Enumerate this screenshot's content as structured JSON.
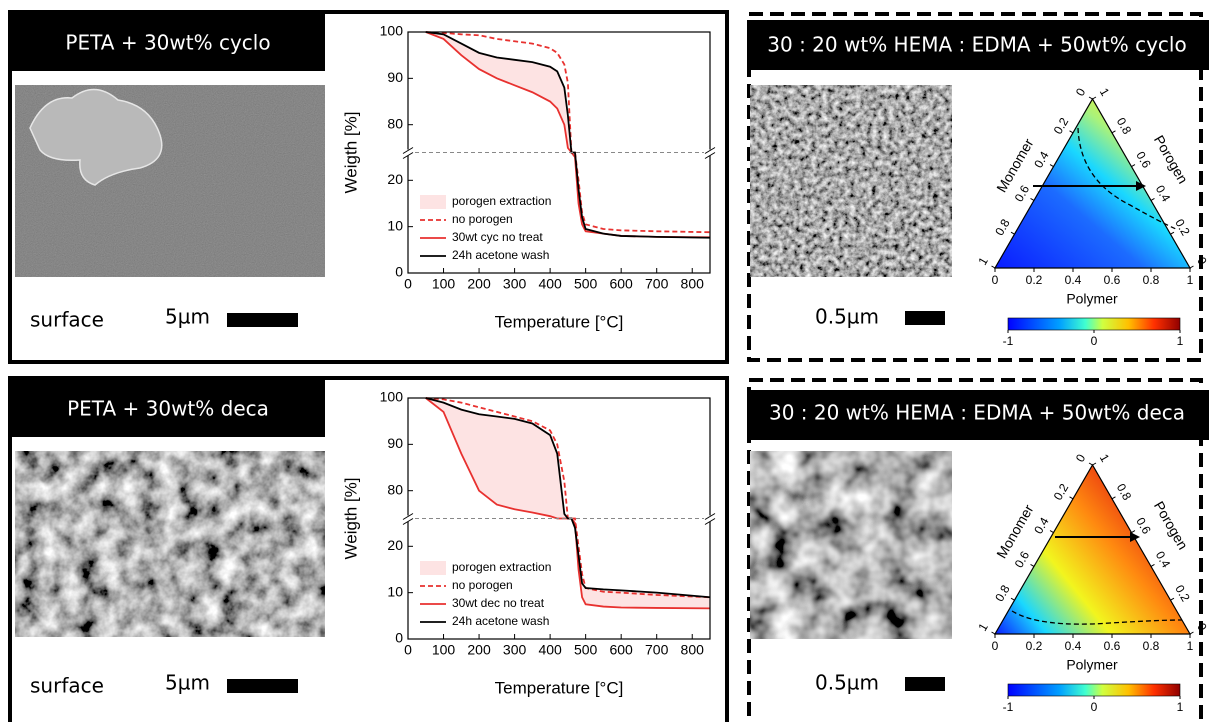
{
  "panels": [
    {
      "title": "PETA + 30wt% cyclo",
      "image_caption": "surface",
      "scale_label": "5µm"
    },
    {
      "title": "30 : 20 wt% HEMA : EDMA + 50wt% cyclo",
      "scale_label": "0.5µm"
    },
    {
      "title": "PETA + 30wt% deca",
      "image_caption": "surface",
      "scale_label": "5µm"
    },
    {
      "title": "30 : 20 wt% HEMA : EDMA + 50wt% deca",
      "scale_label": "0.5µm"
    }
  ],
  "chart_data": [
    {
      "type": "line",
      "x_label": "Temperature [°C]",
      "y_label": "Weigth [%]",
      "x": [
        50,
        100,
        150,
        200,
        250,
        300,
        350,
        400,
        420,
        440,
        450,
        460,
        470,
        480,
        490,
        500,
        550,
        600,
        700,
        850
      ],
      "xlim": [
        0,
        850
      ],
      "xticks": [
        0,
        100,
        200,
        300,
        400,
        500,
        600,
        700,
        800
      ],
      "ylim": [
        0,
        100
      ],
      "y_break": [
        26,
        74
      ],
      "yticks": [
        0,
        10,
        20,
        80,
        90,
        100
      ],
      "series": [
        {
          "name": "porogen extraction",
          "color": "#fde3e3",
          "band": [
            2,
            3
          ]
        },
        {
          "name": "no porogen",
          "color": "#e8312f",
          "dash": true,
          "values": [
            100,
            99.8,
            99.5,
            99.3,
            98.5,
            98,
            97.5,
            96.5,
            95.5,
            93,
            89,
            50,
            30,
            20,
            13,
            10.5,
            9.5,
            9.2,
            9,
            8.8
          ]
        },
        {
          "name": "30wt cyc no treat",
          "color": "#e8312f",
          "values": [
            100,
            98.5,
            95,
            92,
            90,
            88.5,
            87,
            85,
            83.5,
            80,
            75,
            40,
            25,
            15,
            10.5,
            9,
            8.5,
            8,
            7.8,
            7.7
          ]
        },
        {
          "name": "24h acetone wash",
          "color": "#000000",
          "values": [
            100,
            99.5,
            97.5,
            95.5,
            94.5,
            94,
            93.5,
            92.5,
            91.5,
            88,
            82,
            45,
            28,
            18,
            12,
            9.5,
            8.5,
            8,
            7.8,
            7.6
          ]
        }
      ]
    },
    {
      "type": "ternary",
      "bottom_label": "Polymer",
      "left_label": "Monomer",
      "right_label": "Porogen",
      "ticks": [
        0,
        0.2,
        0.4,
        0.6,
        0.8,
        1
      ],
      "colorbar_lim": [
        -1,
        1
      ],
      "colorbar_ticks": [
        -1,
        0,
        1
      ]
    },
    {
      "type": "line",
      "x_label": "Temperature [°C]",
      "y_label": "Weigth [%]",
      "x": [
        50,
        100,
        150,
        200,
        250,
        300,
        350,
        400,
        420,
        440,
        450,
        460,
        470,
        480,
        490,
        500,
        550,
        600,
        700,
        850
      ],
      "xlim": [
        0,
        850
      ],
      "xticks": [
        0,
        100,
        200,
        300,
        400,
        500,
        600,
        700,
        800
      ],
      "ylim": [
        0,
        100
      ],
      "y_break": [
        26,
        74
      ],
      "yticks": [
        0,
        10,
        20,
        80,
        90,
        100
      ],
      "series": [
        {
          "name": "porogen extraction",
          "color": "#fde3e3",
          "band": [
            2,
            3
          ]
        },
        {
          "name": "no porogen",
          "color": "#e8312f",
          "dash": true,
          "values": [
            100,
            99.7,
            99,
            98,
            97,
            96,
            95,
            93,
            90,
            82,
            70,
            40,
            27,
            20,
            14,
            11,
            10.2,
            10,
            9.5,
            9
          ]
        },
        {
          "name": "30wt dec no treat",
          "color": "#e8312f",
          "values": [
            100,
            97,
            88,
            80,
            77,
            76,
            75.3,
            74.5,
            74,
            60,
            40,
            30,
            25,
            15,
            9,
            7.5,
            7,
            6.8,
            6.7,
            6.6
          ]
        },
        {
          "name": "24h acetone wash",
          "color": "#000000",
          "values": [
            100,
            99,
            97.5,
            96.5,
            96,
            95.5,
            94.5,
            92,
            88,
            75,
            45,
            30,
            24,
            18,
            12,
            11,
            10.7,
            10.5,
            10,
            9
          ]
        }
      ]
    },
    {
      "type": "ternary",
      "bottom_label": "Polymer",
      "left_label": "Monomer",
      "right_label": "Porogen",
      "ticks": [
        0,
        0.2,
        0.4,
        0.6,
        0.8,
        1
      ],
      "colorbar_lim": [
        -1,
        1
      ],
      "colorbar_ticks": [
        -1,
        0,
        1
      ]
    }
  ]
}
